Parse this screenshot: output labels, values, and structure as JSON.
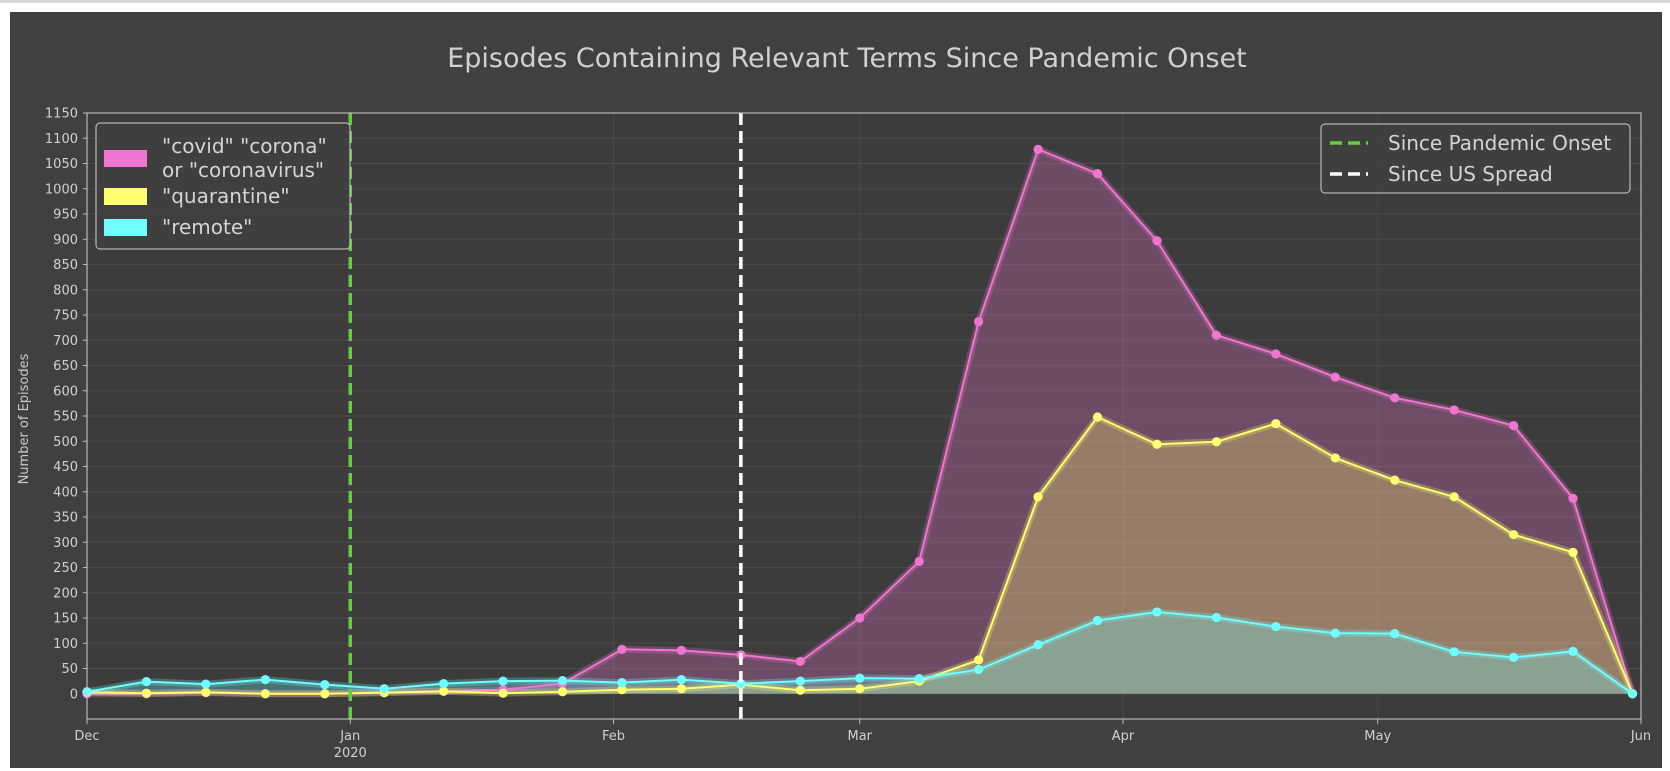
{
  "chart_data": {
    "type": "area",
    "title": "Episodes Containing Relevant Terms Since Pandemic Onset",
    "xlabel": "",
    "ylabel": "Number of Episodes",
    "xlim": [
      "2019-12-01",
      "2020-06-01"
    ],
    "ylim": [
      -50,
      1150
    ],
    "yticks": [
      0,
      50,
      100,
      150,
      200,
      250,
      300,
      350,
      400,
      450,
      500,
      550,
      600,
      650,
      700,
      750,
      800,
      850,
      900,
      950,
      1000,
      1050,
      1100,
      1150
    ],
    "xticks": [
      {
        "date": "2019-12-01",
        "label": "Dec",
        "sublabel": ""
      },
      {
        "date": "2020-01-01",
        "label": "Jan",
        "sublabel": "2020"
      },
      {
        "date": "2020-02-01",
        "label": "Feb",
        "sublabel": ""
      },
      {
        "date": "2020-03-01",
        "label": "Mar",
        "sublabel": ""
      },
      {
        "date": "2020-04-01",
        "label": "Apr",
        "sublabel": ""
      },
      {
        "date": "2020-05-01",
        "label": "May",
        "sublabel": ""
      },
      {
        "date": "2020-06-01",
        "label": "Jun",
        "sublabel": ""
      }
    ],
    "grid": true,
    "background": "#404040",
    "x": [
      "2019-12-01",
      "2019-12-08",
      "2019-12-15",
      "2019-12-22",
      "2019-12-29",
      "2020-01-05",
      "2020-01-12",
      "2020-01-19",
      "2020-01-26",
      "2020-02-02",
      "2020-02-09",
      "2020-02-16",
      "2020-02-23",
      "2020-03-01",
      "2020-03-08",
      "2020-03-15",
      "2020-03-22",
      "2020-03-29",
      "2020-04-05",
      "2020-04-12",
      "2020-04-19",
      "2020-04-26",
      "2020-05-03",
      "2020-05-10",
      "2020-05-17",
      "2020-05-24",
      "2020-05-31"
    ],
    "series": [
      {
        "name": "\"covid\" \"corona\"\n or \"coronavirus\"",
        "color": "#f075d0",
        "values": [
          0,
          0,
          2,
          0,
          0,
          3,
          5,
          8,
          20,
          88,
          86,
          77,
          64,
          150,
          262,
          737,
          1078,
          1030,
          897,
          710,
          673,
          627,
          586,
          562,
          531,
          387,
          0
        ]
      },
      {
        "name": "\"quarantine\"",
        "color": "#ffff70",
        "values": [
          3,
          1,
          3,
          0,
          0,
          2,
          5,
          1,
          4,
          8,
          10,
          18,
          7,
          10,
          25,
          67,
          390,
          548,
          494,
          499,
          535,
          467,
          423,
          390,
          315,
          280,
          0
        ]
      },
      {
        "name": "\"remote\"",
        "color": "#70ffff",
        "values": [
          4,
          24,
          19,
          28,
          18,
          10,
          20,
          25,
          26,
          22,
          28,
          20,
          25,
          31,
          30,
          48,
          97,
          145,
          162,
          151,
          133,
          120,
          119,
          83,
          72,
          84,
          0
        ]
      }
    ],
    "legend_left": {
      "placement": "top-left",
      "entries": [
        {
          "label": "\"covid\" \"corona\"\n or \"coronavirus\"",
          "color": "#f075d0"
        },
        {
          "label": "\"quarantine\"",
          "color": "#ffff70"
        },
        {
          "label": "\"remote\"",
          "color": "#70ffff"
        }
      ]
    },
    "legend_right": {
      "placement": "top-right",
      "entries": [
        {
          "label": "Since Pandemic Onset",
          "color": "#66cc44",
          "style": "dashed"
        },
        {
          "label": "Since US Spread",
          "color": "#ffffff",
          "style": "dashed"
        }
      ]
    },
    "vlines": [
      {
        "date": "2020-01-01",
        "color": "#66cc44",
        "label": "Since Pandemic Onset"
      },
      {
        "date": "2020-02-16",
        "color": "#ffffff",
        "label": "Since US Spread"
      }
    ]
  }
}
